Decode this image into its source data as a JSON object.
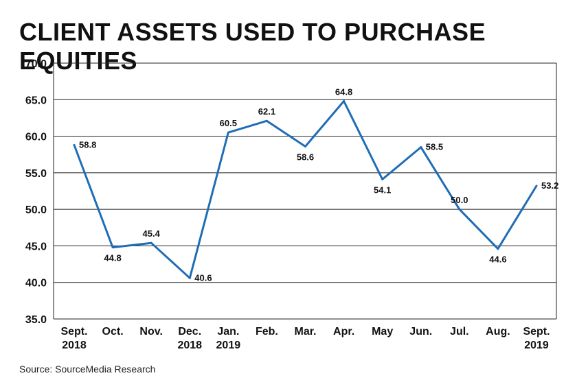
{
  "chart_data": {
    "type": "line",
    "title": "CLIENT ASSETS USED TO PURCHASE EQUITIES",
    "source": "Source: SourceMedia Research",
    "x": [
      [
        "Sept.",
        "2018"
      ],
      [
        "Oct."
      ],
      [
        "Nov."
      ],
      [
        "Dec.",
        "2018"
      ],
      [
        "Jan.",
        "2019"
      ],
      [
        "Feb."
      ],
      [
        "Mar."
      ],
      [
        "Apr."
      ],
      [
        "May"
      ],
      [
        "Jun."
      ],
      [
        "Jul."
      ],
      [
        "Aug."
      ],
      [
        "Sept.",
        "2019"
      ]
    ],
    "series": [
      {
        "values": [
          58.8,
          44.8,
          45.4,
          40.6,
          60.5,
          62.1,
          58.6,
          64.8,
          54.1,
          58.5,
          50.0,
          44.6,
          53.2
        ]
      }
    ],
    "data_labels": [
      "58.8",
      "44.8",
      "45.4",
      "40.6",
      "60.5",
      "62.1",
      "58.6",
      "64.8",
      "54.1",
      "58.5",
      "50.0",
      "44.6",
      "53.2"
    ],
    "label_position": [
      "right",
      "below",
      "above",
      "right",
      "above",
      "above",
      "below",
      "above",
      "below",
      "right",
      "above",
      "below",
      "right"
    ],
    "yticks": [
      "35.0",
      "40.0",
      "45.0",
      "50.0",
      "55.0",
      "60.0",
      "65.0",
      "70.0"
    ],
    "ylim": [
      35,
      70
    ],
    "grid": true,
    "line_color": "#1f6db5"
  }
}
